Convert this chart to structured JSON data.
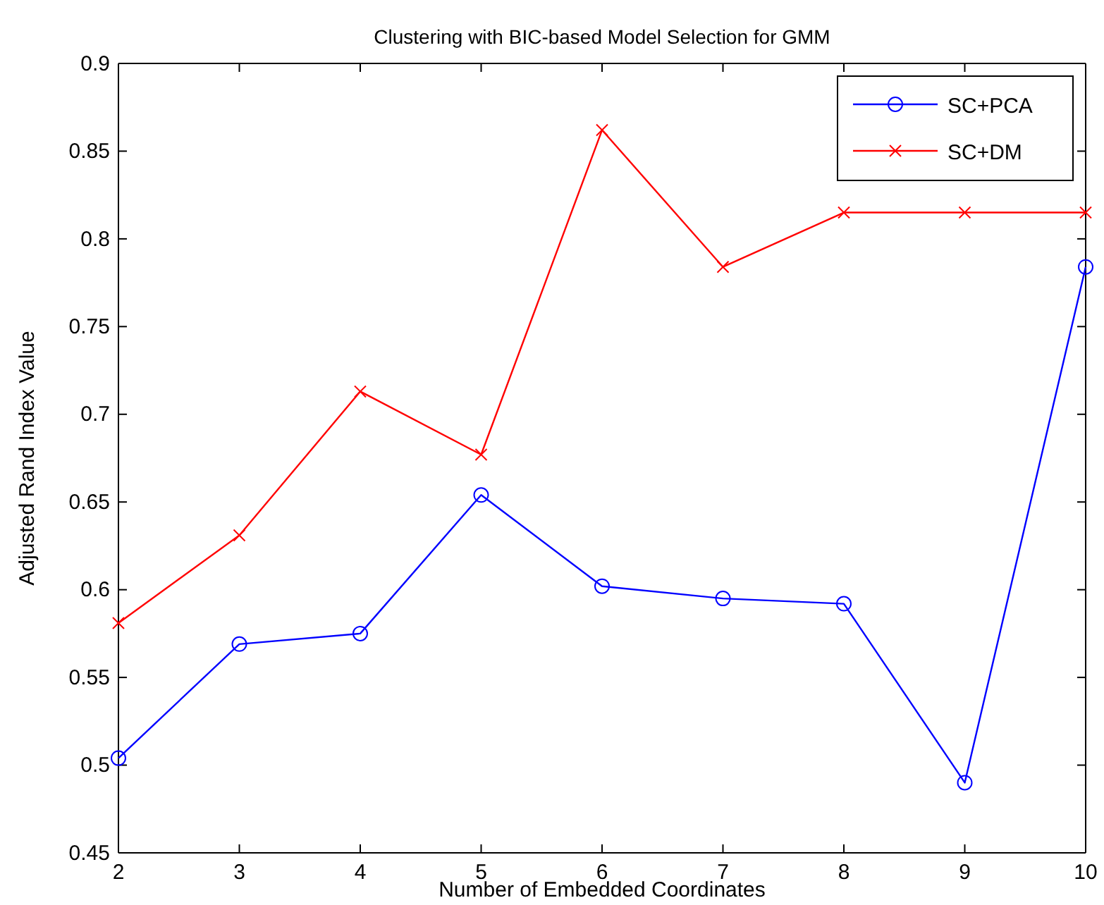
{
  "chart_data": {
    "type": "line",
    "title": "Clustering with BIC-based Model Selection for GMM",
    "xlabel": "Number of Embedded Coordinates",
    "ylabel": "Adjusted Rand Index Value",
    "x": [
      2,
      3,
      4,
      5,
      6,
      7,
      8,
      9,
      10
    ],
    "series": [
      {
        "name": "SC+PCA",
        "color": "#0000ff",
        "marker": "circle",
        "values": [
          0.504,
          0.569,
          0.575,
          0.654,
          0.602,
          0.595,
          0.592,
          0.49,
          0.784
        ]
      },
      {
        "name": "SC+DM",
        "color": "#ff0000",
        "marker": "cross",
        "values": [
          0.581,
          0.631,
          0.713,
          0.677,
          0.862,
          0.784,
          0.815,
          0.815,
          0.815
        ]
      }
    ],
    "xlim": [
      2,
      10
    ],
    "xticks": [
      2,
      3,
      4,
      5,
      6,
      7,
      8,
      9,
      10
    ],
    "ylim": [
      0.45,
      0.9
    ],
    "yticks": [
      0.45,
      0.5,
      0.55,
      0.6,
      0.65,
      0.7,
      0.75,
      0.8,
      0.85,
      0.9
    ],
    "grid": false,
    "legend": "top right",
    "line_style": "solid"
  }
}
